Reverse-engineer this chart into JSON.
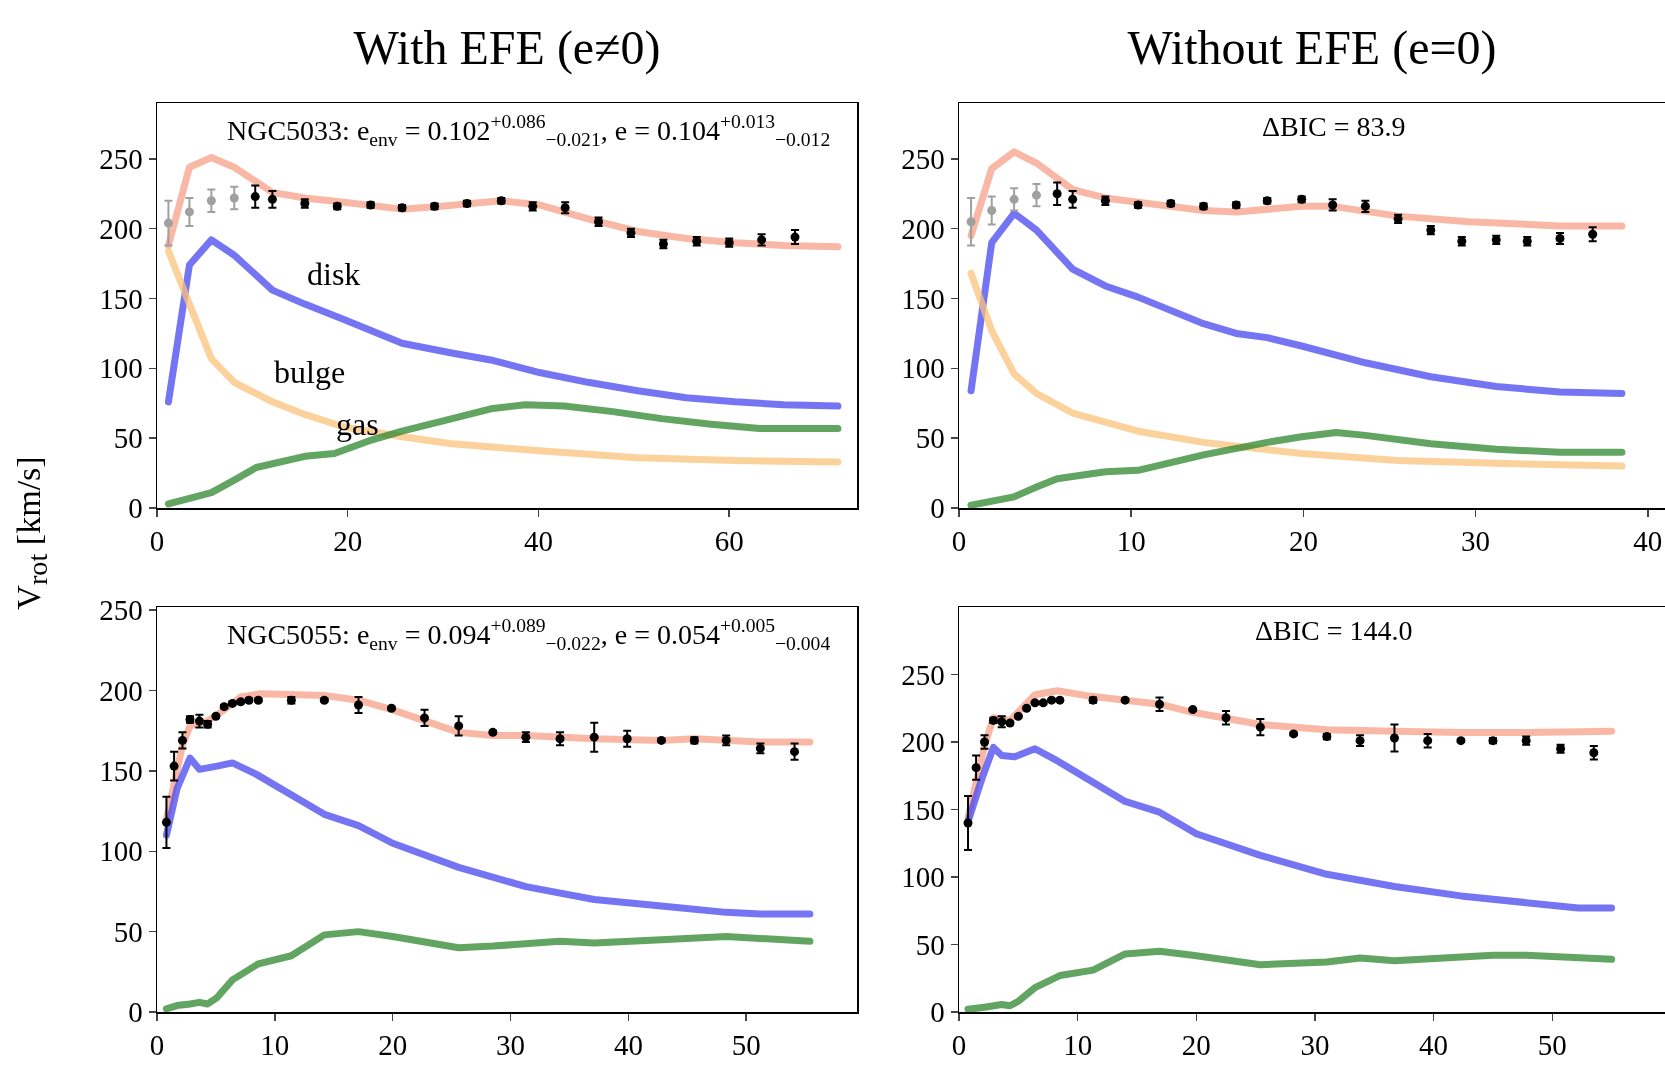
{
  "chart_data": [
    {
      "type": "line",
      "title": "With EFE (e≠0)",
      "ylabel": "V$_{rot}$ [km/s]",
      "xlim": [
        0,
        73.4
      ],
      "ylim": [
        0,
        290
      ],
      "xticks": [
        0,
        20,
        40,
        60
      ],
      "yticks": [
        0,
        50,
        100,
        150,
        200,
        250
      ],
      "annotations": [
        "NGC5033: e$_{env}$ = 0.102$^{+0.086}$$_{−0.021}$, e = 0.104$^{+0.013}$$_{−0.012}$"
      ],
      "series": [
        {
          "type": "line",
          "color": "#f8a088",
          "x": [
            1.2,
            3.4,
            5.7,
            8.1,
            12.1,
            15.5,
            19.6,
            25.7,
            29.8,
            36.1,
            40.1,
            45.2,
            50.4,
            55.5,
            60.6,
            65.7,
            71.4
          ],
          "values": [
            188,
            244,
            251,
            244,
            226,
            222,
            219,
            214,
            216,
            220,
            217,
            207,
            198,
            193,
            190,
            188,
            187
          ]
        },
        {
          "type": "line",
          "name": "disk",
          "color": "#4848f0",
          "x": [
            1.2,
            3.4,
            5.7,
            8.1,
            12.1,
            15.5,
            19.6,
            25.7,
            30.9,
            35,
            40.1,
            45.2,
            50.4,
            55.5,
            60.6,
            65.7,
            71.4
          ],
          "values": [
            76,
            174,
            192,
            181,
            156,
            146,
            135,
            118,
            111,
            106,
            97,
            90,
            84,
            79,
            76,
            74,
            73
          ]
        },
        {
          "type": "line",
          "name": "bulge",
          "color": "#fbc37c",
          "x": [
            1.2,
            3.4,
            5.7,
            8.1,
            12.1,
            15.5,
            19.6,
            25.7,
            30.9,
            40.1,
            50.4,
            60.6,
            71.4
          ],
          "values": [
            184,
            146,
            107,
            90,
            76,
            67,
            58,
            51,
            46,
            41,
            36,
            34,
            33
          ]
        },
        {
          "type": "line",
          "name": "gas",
          "color": "#2e862e",
          "x": [
            1.2,
            5.7,
            8.1,
            10.4,
            15.5,
            18.6,
            22.2,
            25.7,
            29.8,
            35,
            38.6,
            42.7,
            47.8,
            52.9,
            58.1,
            63.2,
            71.4
          ],
          "values": [
            3,
            11,
            20,
            29,
            37,
            39,
            48,
            55,
            62,
            71,
            74,
            73,
            69,
            64,
            60,
            57,
            57
          ]
        },
        {
          "type": "scatter",
          "color": "#a0a0a0",
          "marker": "circle",
          "x": [
            1.2,
            3.4,
            5.7,
            8.1
          ],
          "values": [
            204,
            212,
            220,
            222
          ],
          "errors": [
            16,
            10,
            8,
            8
          ]
        },
        {
          "type": "scatter",
          "color": "#000000",
          "marker": "circle",
          "x": [
            10.3,
            12.1,
            15.5,
            18.9,
            22.4,
            25.7,
            29.1,
            32.5,
            36.1,
            39.4,
            42.8,
            46.3,
            49.7,
            53.1,
            56.6,
            60.0,
            63.4,
            66.9
          ],
          "values": [
            223,
            221,
            218,
            216,
            217,
            215,
            216,
            218,
            220,
            216,
            215,
            205,
            197,
            189,
            191,
            190,
            192,
            194
          ],
          "errors": [
            8,
            6,
            3,
            2,
            2,
            2,
            2,
            2,
            2,
            3,
            4,
            3,
            3,
            3,
            3,
            3,
            4,
            5
          ]
        }
      ]
    },
    {
      "type": "line",
      "title": "Without EFE (e=0)",
      "xlim": [
        0,
        41
      ],
      "ylim": [
        0,
        290
      ],
      "xticks": [
        0,
        10,
        20,
        30,
        40
      ],
      "yticks": [
        0,
        50,
        100,
        150,
        200,
        250
      ],
      "annotations": [
        "ΔBIC = 83.9"
      ],
      "series": [
        {
          "type": "line",
          "color": "#f8a088",
          "x": [
            0.7,
            1.9,
            3.2,
            4.5,
            6.6,
            8.5,
            10.4,
            14.2,
            16.1,
            19.9,
            21.7,
            25.5,
            29.6,
            34.9,
            38.5
          ],
          "values": [
            195,
            243,
            255,
            247,
            228,
            222,
            219,
            213,
            212,
            216,
            216,
            209,
            205,
            202,
            202
          ]
        },
        {
          "type": "line",
          "color": "#4848f0",
          "x": [
            0.7,
            1.9,
            3.2,
            4.5,
            6.6,
            8.5,
            10.4,
            14.2,
            16.1,
            17.9,
            19.9,
            23.6,
            27.4,
            31.2,
            34.9,
            38.5
          ],
          "values": [
            84,
            190,
            211,
            199,
            171,
            159,
            151,
            132,
            125,
            122,
            116,
            104,
            94,
            87,
            83,
            82
          ]
        },
        {
          "type": "line",
          "color": "#fbc37c",
          "x": [
            0.7,
            1.9,
            3.2,
            4.5,
            6.6,
            10.4,
            14.2,
            19.9,
            25.5,
            31.2,
            38.5
          ],
          "values": [
            168,
            127,
            96,
            82,
            68,
            55,
            47,
            39,
            34,
            32,
            30
          ]
        },
        {
          "type": "line",
          "color": "#2e862e",
          "x": [
            0.7,
            3.2,
            4.5,
            5.7,
            8.5,
            10.4,
            14.2,
            17.9,
            19.9,
            21.9,
            23.6,
            27.4,
            31.2,
            34.9,
            38.5
          ],
          "values": [
            2,
            8,
            15,
            21,
            26,
            27,
            38,
            47,
            51,
            54,
            52,
            46,
            42,
            40,
            40
          ]
        },
        {
          "type": "scatter",
          "color": "#a0a0a0",
          "marker": "circle",
          "x": [
            0.7,
            1.9,
            3.2,
            4.5
          ],
          "values": [
            205,
            213,
            221,
            224
          ],
          "errors": [
            17,
            10,
            8,
            8
          ]
        },
        {
          "type": "scatter",
          "color": "#000000",
          "marker": "circle",
          "x": [
            5.7,
            6.6,
            8.5,
            10.4,
            12.3,
            14.2,
            16.1,
            17.9,
            19.9,
            21.7,
            23.6,
            25.5,
            27.4,
            29.2,
            31.2,
            33.0,
            34.9,
            36.8
          ],
          "values": [
            225,
            221,
            220,
            217,
            218,
            216,
            217,
            220,
            221,
            217,
            216,
            207,
            199,
            191,
            192,
            191,
            193,
            196
          ],
          "errors": [
            8,
            6,
            3,
            2,
            2,
            2,
            2,
            2,
            2,
            4,
            4,
            3,
            3,
            3,
            3,
            3,
            4,
            5
          ]
        }
      ]
    },
    {
      "type": "line",
      "xlim": [
        0,
        59.4
      ],
      "ylim": [
        0,
        252
      ],
      "xticks": [
        0,
        10,
        20,
        30,
        40,
        50
      ],
      "yticks": [
        0,
        50,
        100,
        150,
        200,
        250
      ],
      "annotations": [
        "NGC5055: e$_{env}$ = 0.094$^{+0.089}$$_{−0.022}$, e = 0.054$^{+0.005}$$_{−0.004}$"
      ],
      "series": [
        {
          "type": "line",
          "color": "#f8a088",
          "x": [
            0.8,
            2.16,
            2.8,
            4.3,
            5.7,
            7.1,
            8.8,
            14.2,
            17.1,
            20,
            25.6,
            28.5,
            31.3,
            37.1,
            42.8,
            45.6,
            51.2,
            55.4
          ],
          "values": [
            120,
            166,
            178,
            181,
            188,
            196,
            198,
            197,
            194,
            188,
            174,
            172,
            172,
            170,
            169,
            170,
            168,
            168
          ]
        },
        {
          "type": "line",
          "color": "#4848f0",
          "x": [
            0.8,
            1.7,
            2.8,
            3.6,
            5.1,
            6.4,
            8.4,
            14.2,
            17.1,
            20,
            25.6,
            31.3,
            37.1,
            42.8,
            48.3,
            51.2,
            55.4
          ],
          "values": [
            110,
            139,
            158,
            151,
            153,
            155,
            148,
            123,
            116,
            105,
            90,
            78,
            70,
            66,
            62,
            61,
            61
          ]
        },
        {
          "type": "line",
          "color": "#2e862e",
          "x": [
            0.8,
            1.7,
            2.8,
            3.6,
            4.3,
            5.1,
            6.4,
            8.6,
            11.4,
            14.2,
            17.1,
            20,
            25.6,
            28.5,
            34.2,
            37.1,
            42.8,
            48.3,
            55.4
          ],
          "values": [
            2,
            4,
            5,
            6,
            5,
            9,
            20,
            30,
            35,
            48,
            50,
            47,
            40,
            41,
            44,
            43,
            45,
            47,
            44
          ]
        },
        {
          "type": "scatter",
          "color": "#000000",
          "marker": "circle",
          "x": [
            0.8,
            1.45,
            2.16,
            2.8,
            3.6,
            4.3,
            5.0,
            5.7,
            6.4,
            7.1,
            7.8,
            8.6,
            11.4,
            14.2,
            17.1,
            19.9,
            22.7,
            25.6,
            28.5,
            31.3,
            34.2,
            37.1,
            39.9,
            42.8,
            45.6,
            48.3,
            51.2,
            54.1
          ],
          "values": [
            118,
            153,
            169,
            182,
            181,
            179,
            184,
            190,
            192,
            193,
            194,
            194,
            194,
            194,
            191,
            189,
            183,
            178,
            174,
            171,
            170,
            171,
            170,
            169,
            169,
            169,
            164,
            162
          ],
          "errors": [
            16,
            9,
            5,
            2,
            4,
            2,
            1,
            1,
            1,
            1,
            1,
            1,
            2,
            1,
            5,
            1,
            5,
            6,
            1,
            3,
            4,
            9,
            5,
            1,
            2,
            3,
            3,
            5
          ]
        }
      ]
    },
    {
      "type": "line",
      "xlim": [
        0,
        59.5
      ],
      "ylim": [
        0,
        300
      ],
      "xticks": [
        0,
        10,
        20,
        30,
        40,
        50
      ],
      "yticks": [
        0,
        50,
        100,
        150,
        200,
        250
      ],
      "annotations": [
        "ΔBIC = 144.0"
      ],
      "series": [
        {
          "type": "line",
          "color": "#f8a088",
          "x": [
            0.76,
            2.15,
            2.9,
            4.3,
            6.4,
            8.3,
            11,
            16.9,
            19.7,
            25.4,
            31,
            36.7,
            42.3,
            47.8,
            55
          ],
          "values": [
            144,
            197,
            218,
            216,
            235,
            238,
            234,
            228,
            222,
            213,
            209,
            208,
            207,
            207,
            208
          ]
        },
        {
          "type": "line",
          "color": "#4848f0",
          "x": [
            0.76,
            1.9,
            2.9,
            3.6,
            4.7,
            6.4,
            8.3,
            14,
            16.9,
            20,
            25.4,
            31,
            36.7,
            42.3,
            47.8,
            52.2,
            55
          ],
          "values": [
            141,
            172,
            196,
            190,
            189,
            195,
            186,
            156,
            148,
            132,
            116,
            102,
            93,
            86,
            81,
            77,
            77
          ]
        },
        {
          "type": "line",
          "color": "#2e862e",
          "x": [
            0.76,
            2.15,
            3.6,
            4.3,
            5.0,
            6.4,
            8.5,
            11.3,
            14.0,
            16.9,
            19.7,
            25.4,
            31,
            33.8,
            36.7,
            45,
            47.8,
            55
          ],
          "values": [
            2,
            3.5,
            5.6,
            4.6,
            8,
            18,
            27,
            31,
            43,
            45,
            42,
            35,
            37,
            40,
            38,
            42,
            42,
            39
          ]
        },
        {
          "type": "scatter",
          "color": "#000000",
          "marker": "circle",
          "x": [
            0.76,
            1.44,
            2.15,
            2.9,
            3.6,
            4.3,
            5.0,
            5.7,
            6.4,
            7.1,
            7.8,
            8.5,
            11.3,
            14.0,
            16.9,
            19.7,
            22.5,
            25.4,
            28.2,
            31.0,
            33.8,
            36.7,
            39.5,
            42.3,
            45.0,
            47.8,
            50.7,
            53.5
          ],
          "values": [
            140,
            181,
            200,
            216,
            215,
            214,
            219,
            225,
            229,
            229,
            231,
            231,
            231,
            231,
            228,
            224,
            218,
            211,
            206,
            204,
            201,
            203,
            201,
            201,
            201,
            201,
            195,
            192
          ],
          "errors": [
            20,
            9,
            5,
            2,
            4,
            1,
            1,
            1,
            1,
            1,
            1,
            1,
            2,
            1,
            5,
            1,
            5,
            6,
            1,
            2,
            4,
            10,
            5,
            1,
            2,
            3,
            3,
            5
          ]
        }
      ]
    }
  ]
}
